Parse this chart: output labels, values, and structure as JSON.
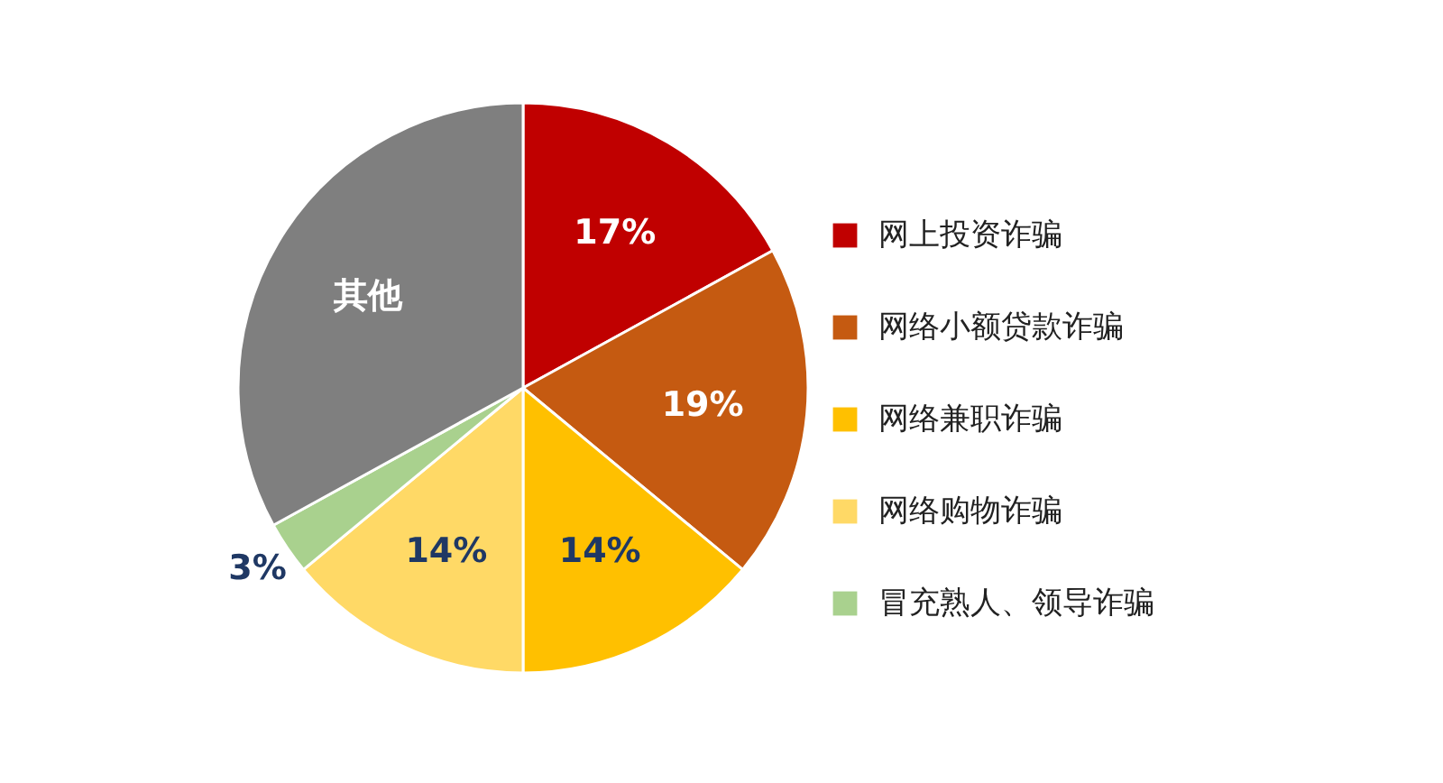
{
  "chart_data": {
    "type": "pie",
    "categories": [
      "网上投资诈骗",
      "网络小额贷款诈骗",
      "网络兼职诈骗",
      "网络购物诈骗",
      "冒充熟人、领导诈骗",
      "其他"
    ],
    "values": [
      17,
      19,
      14,
      14,
      3,
      33
    ],
    "colors": [
      "#c00000",
      "#c55a11",
      "#ffc000",
      "#ffd966",
      "#a9d18e",
      "#7f7f7f"
    ],
    "value_labels": [
      "17%",
      "19%",
      "14%",
      "14%",
      "3%",
      null
    ],
    "legend": "right"
  }
}
